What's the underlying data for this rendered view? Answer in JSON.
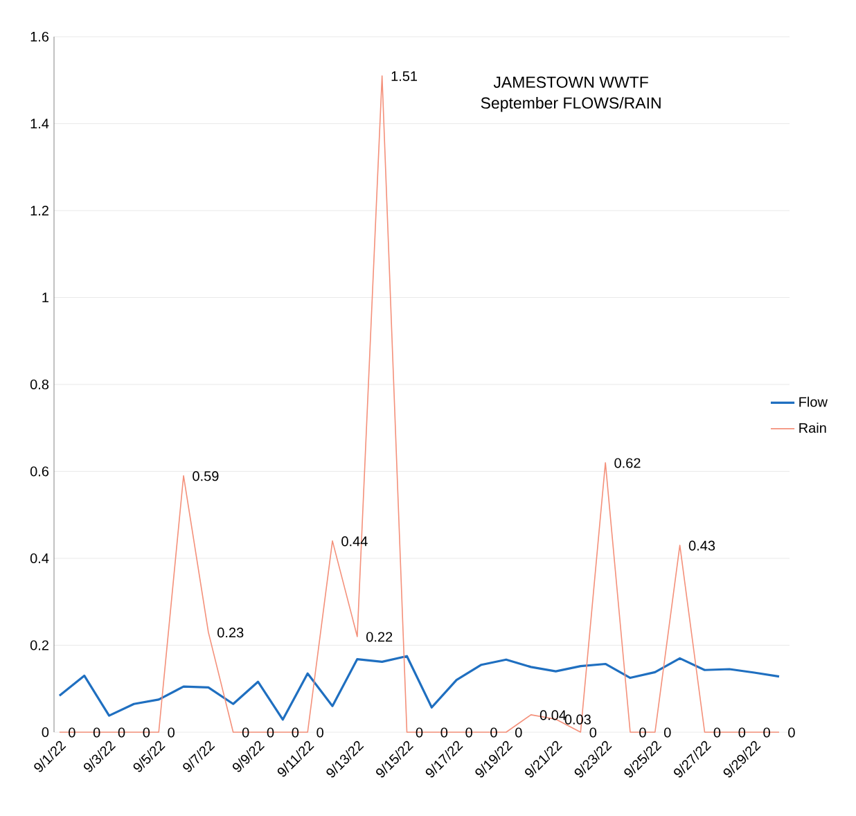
{
  "chart_data": {
    "type": "line",
    "title": "JAMESTOWN WWTF",
    "subtitle": "September  FLOWS/RAIN",
    "categories": [
      "9/1/22",
      null,
      "9/3/22",
      null,
      "9/5/22",
      null,
      "9/7/22",
      null,
      "9/9/22",
      null,
      "9/11/22",
      null,
      "9/13/22",
      null,
      "9/15/22",
      null,
      "9/17/22",
      null,
      "9/19/22",
      null,
      "9/21/22",
      null,
      "9/23/22",
      null,
      "9/25/22",
      null,
      "9/27/22",
      null,
      "9/29/22",
      null
    ],
    "series": [
      {
        "name": "Flow",
        "color": "#1f6fc0",
        "values": [
          0.084,
          0.13,
          0.038,
          0.065,
          0.075,
          0.105,
          0.103,
          0.065,
          0.116,
          0.029,
          0.135,
          0.06,
          0.168,
          0.162,
          0.175,
          0.057,
          0.12,
          0.155,
          0.167,
          0.15,
          0.14,
          0.152,
          0.157,
          0.125,
          0.138,
          0.17,
          0.143,
          0.145,
          0.137,
          0.128
        ]
      },
      {
        "name": "Rain",
        "color": "#f4907a",
        "values": [
          0,
          0,
          0,
          0,
          0,
          0.59,
          0.23,
          0,
          0,
          0,
          0,
          0.44,
          0.22,
          1.51,
          0,
          0,
          0,
          0,
          0,
          0.04,
          0.03,
          0,
          0.62,
          0,
          0,
          0.43,
          0,
          0,
          0,
          0
        ],
        "value_labels": [
          "0",
          "0",
          "0",
          "0",
          "0",
          "0.59",
          "0.23",
          "0",
          "0",
          "0",
          "0",
          "0.44",
          "0.22",
          "1.51",
          "0",
          "0",
          "0",
          "0",
          "0",
          "0.04",
          "0.03",
          "0",
          "0.62",
          "0",
          "0",
          "0.43",
          "0",
          "0",
          "0",
          "0"
        ]
      }
    ],
    "ylim": [
      0,
      1.6
    ],
    "yticks": [
      0,
      0.2,
      0.4,
      0.6,
      0.8,
      1,
      1.2,
      1.4,
      1.6
    ],
    "grid": "y",
    "legend": "right",
    "marker": "none",
    "line_style": "solid"
  }
}
